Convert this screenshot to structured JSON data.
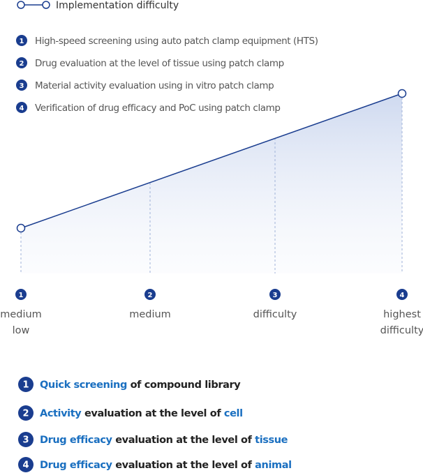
{
  "legend": "Implementation difficulty",
  "methods": [
    {
      "number": 1,
      "text": "High-speed screening using auto patch clamp equipment (HTS)"
    },
    {
      "number": 2,
      "text": "Drug evaluation at the level of tissue using patch clamp"
    },
    {
      "number": 3,
      "text": "Material activity evaluation using in vitro patch clamp"
    },
    {
      "number": 4,
      "text": "Verification of drug efficacy and PoC using patch clamp"
    }
  ],
  "levels": [
    {
      "number": 1,
      "label_lines": [
        "medium",
        "low"
      ]
    },
    {
      "number": 2,
      "label_lines": [
        "medium"
      ]
    },
    {
      "number": 3,
      "label_lines": [
        "difficulty"
      ]
    },
    {
      "number": 4,
      "label_lines": [
        "highest",
        "difficulty"
      ]
    }
  ],
  "purposes": [
    {
      "number": 1,
      "parts": [
        {
          "text": "Quick screening",
          "highlight": true
        },
        {
          "text": " of compound library",
          "highlight": false
        }
      ]
    },
    {
      "number": 2,
      "parts": [
        {
          "text": "Activity",
          "highlight": true
        },
        {
          "text": " evaluation at the level of ",
          "highlight": false
        },
        {
          "text": "cell",
          "highlight": true
        }
      ]
    },
    {
      "number": 3,
      "parts": [
        {
          "text": "Drug efficacy",
          "highlight": true
        },
        {
          "text": " evaluation at the level of ",
          "highlight": false
        },
        {
          "text": "tissue",
          "highlight": true
        }
      ]
    },
    {
      "number": 4,
      "parts": [
        {
          "text": "Drug efficacy",
          "highlight": true
        },
        {
          "text": " evaluation at the level of ",
          "highlight": false
        },
        {
          "text": "animal",
          "highlight": true
        }
      ]
    }
  ]
}
